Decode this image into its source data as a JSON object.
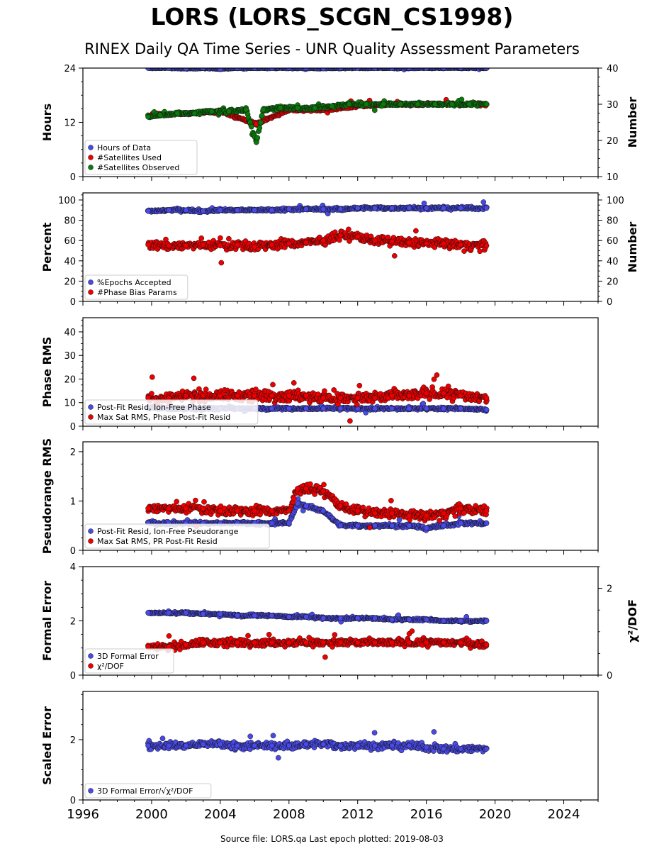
{
  "figure": {
    "title": "LORS (LORS_SCGN_CS1998)",
    "subtitle": "RINEX Daily QA Time Series - UNR Quality Assessment Parameters",
    "footer": "Source file: LORS.qa Last epoch plotted: 2019-08-03"
  },
  "colors": {
    "blue": "#4a4ae8",
    "red": "#ee0000",
    "green": "#0a7a0a",
    "edge": "#111111"
  },
  "chart_data": [
    {
      "type": "scatter",
      "name": "hours-panel",
      "ylabel": "Hours",
      "ylabel_right": "Number",
      "xlim": [
        1996,
        2026
      ],
      "ylim": [
        0,
        24
      ],
      "ylim_right": [
        10,
        40
      ],
      "yticks": [
        0,
        12,
        24
      ],
      "yticks_right": [
        10,
        20,
        30,
        40
      ],
      "legend": "lower-left",
      "series": [
        {
          "name": "Hours of Data",
          "color": "blue",
          "axis": "left",
          "x": [
            1999.8,
            2001,
            2002,
            2003,
            2004,
            2005,
            2006,
            2007,
            2008,
            2009,
            2010,
            2011,
            2012,
            2013,
            2014,
            2015,
            2016,
            2017,
            2018,
            2019.5
          ],
          "y": [
            24,
            24,
            23.9,
            24,
            23.8,
            24,
            24,
            24,
            24,
            24,
            23.9,
            24,
            24,
            24,
            24,
            24,
            24,
            24,
            24,
            24
          ]
        },
        {
          "name": "#Satellites Used",
          "color": "red",
          "axis": "right",
          "x": [
            2000,
            2002,
            2004,
            2006.1,
            2008,
            2010,
            2012,
            2014,
            2016,
            2018,
            2019.5
          ],
          "y": [
            27,
            27.5,
            28,
            24.5,
            28.5,
            28.5,
            29.5,
            30,
            30,
            30,
            30
          ]
        },
        {
          "name": "#Satellites Observed",
          "color": "green",
          "axis": "right",
          "x": [
            1999.8,
            2000.5,
            2001.5,
            2002.5,
            2003.5,
            2004.5,
            2005.5,
            2006.1,
            2006.5,
            2007.5,
            2008.5,
            2009.5,
            2010.5,
            2011.5,
            2012.5,
            2013.5,
            2014.5,
            2015.5,
            2016.5,
            2017.5,
            2018.5,
            2019.5
          ],
          "y": [
            26.5,
            27,
            27.5,
            27.5,
            28,
            28,
            28.5,
            19.5,
            28.5,
            29,
            29,
            29,
            29.5,
            30,
            30,
            30,
            30,
            30,
            30,
            30,
            30,
            30
          ]
        }
      ]
    },
    {
      "type": "scatter",
      "name": "percent-panel",
      "ylabel": "Percent",
      "ylabel_right": "Number",
      "xlim": [
        1996,
        2026
      ],
      "ylim": [
        0,
        107
      ],
      "ylim_right": [
        0,
        107
      ],
      "yticks": [
        0,
        20,
        40,
        60,
        80,
        100
      ],
      "yticks_right": [
        0,
        20,
        40,
        60,
        80,
        100
      ],
      "legend": "lower-left",
      "series": [
        {
          "name": "%Epochs Accepted",
          "color": "blue",
          "axis": "left",
          "x": [
            1999.8,
            2001,
            2002,
            2003,
            2004,
            2005,
            2006,
            2007,
            2008,
            2009,
            2010,
            2011,
            2012,
            2013,
            2014,
            2015,
            2016,
            2017,
            2018,
            2019.5
          ],
          "y": [
            89,
            90,
            90,
            89,
            90,
            90,
            90,
            90,
            91,
            91,
            91,
            91,
            92,
            92,
            92,
            92,
            92,
            92,
            92,
            92
          ]
        },
        {
          "name": "#Phase Bias Params",
          "color": "red",
          "axis": "right",
          "x": [
            1999.8,
            2001,
            2002,
            2003,
            2004,
            2005,
            2006,
            2007,
            2008,
            2009,
            2010,
            2011,
            2012,
            2013,
            2014,
            2015,
            2016,
            2017,
            2018,
            2019.5
          ],
          "y": [
            56,
            55,
            55,
            56,
            55,
            56,
            54,
            56,
            57,
            58,
            60,
            65,
            64,
            60,
            59,
            58,
            57,
            57,
            56,
            55
          ]
        }
      ]
    },
    {
      "type": "scatter",
      "name": "phase-rms-panel",
      "ylabel": "Phase RMS",
      "xlim": [
        1996,
        2026
      ],
      "ylim": [
        0,
        46
      ],
      "yticks": [
        0,
        10,
        20,
        30,
        40
      ],
      "legend": "lower-left",
      "series": [
        {
          "name": "Post-Fit Resid, Ion-Free Phase",
          "color": "blue",
          "x": [
            1999.8,
            2001,
            2002,
            2003,
            2004,
            2005,
            2006,
            2007,
            2008,
            2009,
            2010,
            2011,
            2012,
            2013,
            2014,
            2015,
            2016,
            2017,
            2018,
            2019.5
          ],
          "y": [
            8,
            7.5,
            7.5,
            7.5,
            7.5,
            7.5,
            7.5,
            7.5,
            7.5,
            7.5,
            7.5,
            7.5,
            7.5,
            7.5,
            7.5,
            7.5,
            7.5,
            7.5,
            7.5,
            7
          ]
        },
        {
          "name": "Max Sat RMS, Phase Post-Fit Resid",
          "color": "red",
          "x": [
            1999.8,
            2001,
            2002,
            2003,
            2004,
            2005,
            2006,
            2007,
            2008,
            2009,
            2010,
            2011,
            2012,
            2013,
            2014,
            2015,
            2016,
            2017,
            2018,
            2019.5
          ],
          "y": [
            12,
            12,
            13,
            13,
            13,
            13,
            13,
            13,
            13,
            13,
            12,
            12,
            12,
            12,
            13,
            13,
            14,
            14,
            13,
            12
          ]
        }
      ]
    },
    {
      "type": "scatter",
      "name": "pseudorange-rms-panel",
      "ylabel": "Pseudorange RMS",
      "xlim": [
        1996,
        2026
      ],
      "ylim": [
        0,
        2.2
      ],
      "yticks": [
        0,
        1,
        2
      ],
      "legend": "lower-left",
      "series": [
        {
          "name": "Post-Fit Resid, Ion-Free Pseudorange",
          "color": "blue",
          "x": [
            1999.8,
            2001,
            2002,
            2003,
            2004,
            2005,
            2006,
            2007,
            2008,
            2008.5,
            2009,
            2010,
            2011,
            2012,
            2013,
            2014,
            2015,
            2016,
            2017,
            2018,
            2019.5
          ],
          "y": [
            0.55,
            0.55,
            0.55,
            0.55,
            0.55,
            0.55,
            0.55,
            0.55,
            0.55,
            0.95,
            0.9,
            0.8,
            0.5,
            0.5,
            0.5,
            0.5,
            0.5,
            0.45,
            0.5,
            0.55,
            0.55
          ]
        },
        {
          "name": "Max Sat RMS, PR Post-Fit Resid",
          "color": "red",
          "x": [
            1999.8,
            2001,
            2002,
            2003,
            2004,
            2005,
            2006,
            2007,
            2008,
            2008.5,
            2009,
            2010,
            2011,
            2012,
            2013,
            2014,
            2015,
            2016,
            2017,
            2018,
            2019.5
          ],
          "y": [
            0.85,
            0.85,
            0.85,
            0.85,
            0.8,
            0.8,
            0.8,
            0.8,
            0.8,
            1.25,
            1.25,
            1.2,
            0.9,
            0.8,
            0.75,
            0.75,
            0.7,
            0.7,
            0.75,
            0.85,
            0.8
          ]
        }
      ]
    },
    {
      "type": "scatter",
      "name": "formal-error-panel",
      "ylabel": "Formal Error",
      "ylabel_right": "χ²/DOF",
      "xlim": [
        1996,
        2026
      ],
      "ylim": [
        0,
        4
      ],
      "ylim_right": [
        0,
        2.5
      ],
      "yticks": [
        0,
        2,
        4
      ],
      "yticks_right": [
        0,
        2
      ],
      "legend": "lower-left",
      "series": [
        {
          "name": "3D Formal Error",
          "color": "blue",
          "axis": "left",
          "x": [
            1999.8,
            2001,
            2002,
            2003,
            2004,
            2005,
            2006,
            2007,
            2008,
            2009,
            2010,
            2011,
            2012,
            2013,
            2014,
            2015,
            2016,
            2017,
            2018,
            2019.5
          ],
          "y": [
            2.3,
            2.3,
            2.3,
            2.25,
            2.25,
            2.2,
            2.2,
            2.2,
            2.15,
            2.15,
            2.1,
            2.1,
            2.1,
            2.1,
            2.05,
            2.05,
            2.05,
            2.0,
            2.0,
            2.0
          ]
        },
        {
          "name": "χ²/DOF",
          "color": "red",
          "axis": "right",
          "x": [
            1999.8,
            2001,
            2002,
            2003,
            2004,
            2005,
            2006,
            2007,
            2008,
            2009,
            2010,
            2011,
            2012,
            2013,
            2014,
            2015,
            2016,
            2017,
            2018,
            2019.5
          ],
          "y": [
            0.65,
            0.65,
            0.7,
            0.75,
            0.75,
            0.75,
            0.75,
            0.75,
            0.75,
            0.75,
            0.75,
            0.75,
            0.75,
            0.75,
            0.75,
            0.75,
            0.75,
            0.75,
            0.75,
            0.7
          ]
        }
      ]
    },
    {
      "type": "scatter",
      "name": "scaled-error-panel",
      "ylabel": "Scaled Error",
      "xlim": [
        1996,
        2026
      ],
      "ylim": [
        0,
        3.6
      ],
      "yticks": [
        0,
        2
      ],
      "xticks": [
        1996,
        2000,
        2004,
        2008,
        2012,
        2016,
        2020,
        2024
      ],
      "legend": "lower-left",
      "series": [
        {
          "name": "3D Formal Error/√χ²/DOF",
          "color": "blue",
          "x": [
            1999.8,
            2001,
            2002,
            2003,
            2004,
            2005,
            2006,
            2007,
            2008,
            2009,
            2010,
            2011,
            2012,
            2013,
            2014,
            2015,
            2016,
            2017,
            2018,
            2019.5
          ],
          "y": [
            1.8,
            1.8,
            1.8,
            1.85,
            1.85,
            1.8,
            1.8,
            1.8,
            1.8,
            1.85,
            1.85,
            1.8,
            1.8,
            1.8,
            1.8,
            1.8,
            1.75,
            1.7,
            1.7,
            1.7
          ]
        }
      ]
    }
  ]
}
